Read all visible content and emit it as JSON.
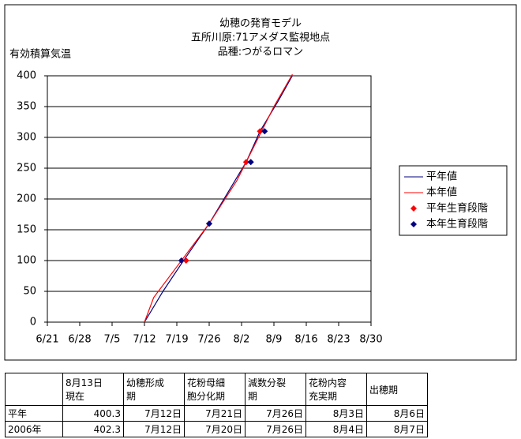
{
  "chart_data": {
    "type": "line",
    "title": [
      "幼穂の発育モデル",
      "五所川原:71アメダス監視地点",
      "品種:つがるロマン"
    ],
    "y_label": "有効積算気温",
    "xlim": [
      "6/21",
      "8/30"
    ],
    "xticks": [
      "6/21",
      "6/28",
      "7/5",
      "7/12",
      "7/19",
      "7/26",
      "8/2",
      "8/9",
      "8/16",
      "8/23",
      "8/30"
    ],
    "ylim": [
      0,
      400
    ],
    "yticks": [
      0,
      50,
      100,
      150,
      200,
      250,
      300,
      350,
      400
    ],
    "grid": true,
    "series": [
      {
        "name": "平年値",
        "color": "#000080",
        "mark": "line",
        "x": [
          "7/12",
          "7/16",
          "7/20",
          "7/26",
          "8/3",
          "8/6",
          "8/10",
          "8/13"
        ],
        "values": [
          0,
          50,
          95,
          160,
          260,
          310,
          360,
          400.3
        ]
      },
      {
        "name": "本年値",
        "color": "#ff0000",
        "mark": "line",
        "x": [
          "7/12",
          "7/14",
          "7/19",
          "7/26",
          "8/1",
          "8/3",
          "8/6",
          "8/9",
          "8/13"
        ],
        "values": [
          0,
          40,
          90,
          160,
          230,
          260,
          305,
          350,
          402.3
        ]
      },
      {
        "name": "平年生育段階",
        "color": "#ff0000",
        "mark": "diamond",
        "x": [
          "7/21",
          "7/26",
          "8/3",
          "8/6"
        ],
        "values": [
          100,
          160,
          260,
          310
        ]
      },
      {
        "name": "本年生育段階",
        "color": "#000080",
        "mark": "diamond",
        "x": [
          "7/20",
          "7/26",
          "8/4",
          "8/7"
        ],
        "values": [
          100,
          160,
          260,
          310
        ]
      }
    ]
  },
  "table": {
    "header": [
      "",
      "8月13日\n現在",
      "幼穂形成\n期",
      "花粉母細\n胞分化期",
      "減数分裂\n期",
      "花粉内容\n充実期",
      "出穂期"
    ],
    "rows": [
      [
        "平年",
        "400.3",
        "7月12日",
        "7月21日",
        "7月26日",
        "8月3日",
        "8月6日"
      ],
      [
        "2006年",
        "402.3",
        "7月12日",
        "7月20日",
        "7月26日",
        "8月4日",
        "8月7日"
      ]
    ]
  }
}
